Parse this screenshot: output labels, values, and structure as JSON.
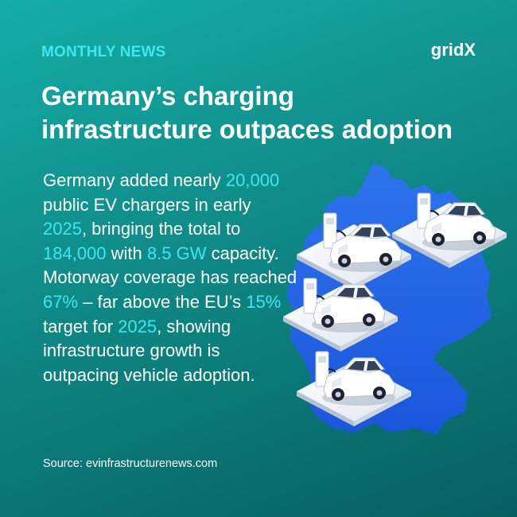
{
  "eyebrow": "MONTHLY NEWS",
  "brand": "gridX",
  "headline": {
    "line1": "Germany’s charging",
    "line2": "infrastructure outpaces adoption"
  },
  "body": {
    "p1": "Germany added nearly ",
    "h1": "20,000",
    "p2": " public EV chargers in early ",
    "h2": "2025",
    "p3": ", bringing the total to ",
    "h3": "184,000",
    "p4": " with ",
    "h4": "8.5 GW",
    "p5": " capacity. Motorway coverage has reached ",
    "h5": "67%",
    "p6": " – far above the EU’s ",
    "h6": "15%",
    "p7": " target for ",
    "h7": "2025",
    "p8": ", showing infrastructure growth is outpacing vehicle adoption."
  },
  "source": "Source: evinfrastructurenews.com",
  "colors": {
    "background_start": "#14aea6",
    "background_end": "#075e5f",
    "highlight": "#3fe7f0",
    "map_blue": "#1f62e6"
  },
  "illustration": {
    "map_icon": "germany-map-icon",
    "station_icon": "ev-charging-station-icon",
    "car_icon": "electric-car-icon"
  }
}
